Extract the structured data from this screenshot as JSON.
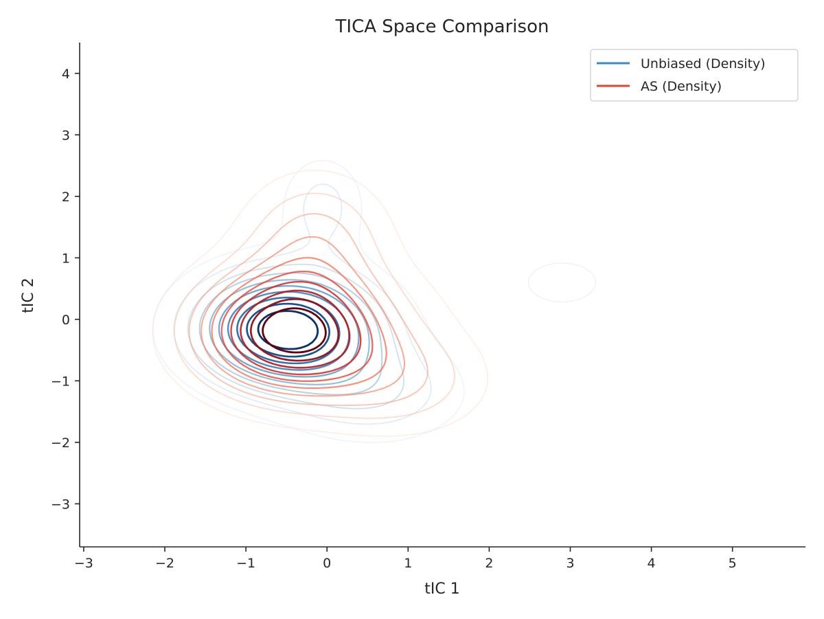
{
  "chart_data": {
    "type": "contour",
    "title": "TICA Space Comparison",
    "xlabel": "tIC 1",
    "ylabel": "tIC 2",
    "xlim": [
      -3.05,
      5.9
    ],
    "ylim": [
      -3.7,
      4.5
    ],
    "xticks": [
      -3,
      -2,
      -1,
      0,
      1,
      2,
      3,
      4,
      5
    ],
    "yticks": [
      -3,
      -2,
      -1,
      0,
      1,
      2,
      3,
      4
    ],
    "xtick_labels": [
      "−3",
      "−2",
      "−1",
      "0",
      "1",
      "2",
      "3",
      "4",
      "5"
    ],
    "ytick_labels": [
      "−3",
      "−2",
      "−1",
      "0",
      "1",
      "2",
      "3",
      "4"
    ],
    "grid": false,
    "legend_position": "top-right",
    "series": [
      {
        "name": "Unbiased (Density)",
        "color": "#3b8bc2",
        "colormap": "Blues",
        "levels": 10,
        "modes": [
          {
            "x": -0.5,
            "y": -0.15,
            "sx": 0.75,
            "sy": 0.62,
            "w": 1.0
          },
          {
            "x": -0.05,
            "y": 1.85,
            "sx": 0.35,
            "sy": 0.55,
            "w": 0.22
          },
          {
            "x": 2.9,
            "y": 0.6,
            "sx": 0.55,
            "sy": 0.42,
            "w": 0.12
          },
          {
            "x": 0.6,
            "y": -1.2,
            "sx": 0.75,
            "sy": 0.55,
            "w": 0.25
          }
        ]
      },
      {
        "name": "AS (Density)",
        "color": "#e8412f",
        "colormap": "Reds",
        "levels": 10,
        "modes": [
          {
            "x": -0.45,
            "y": -0.2,
            "sx": 0.78,
            "sy": 0.68,
            "w": 1.0
          },
          {
            "x": -0.15,
            "y": 1.35,
            "sx": 0.6,
            "sy": 0.7,
            "w": 0.3
          },
          {
            "x": 2.5,
            "y": 0.7,
            "sx": 0.9,
            "sy": 0.55,
            "w": 0.08
          },
          {
            "x": 0.9,
            "y": -1.0,
            "sx": 0.75,
            "sy": 0.6,
            "w": 0.25
          }
        ]
      }
    ]
  }
}
